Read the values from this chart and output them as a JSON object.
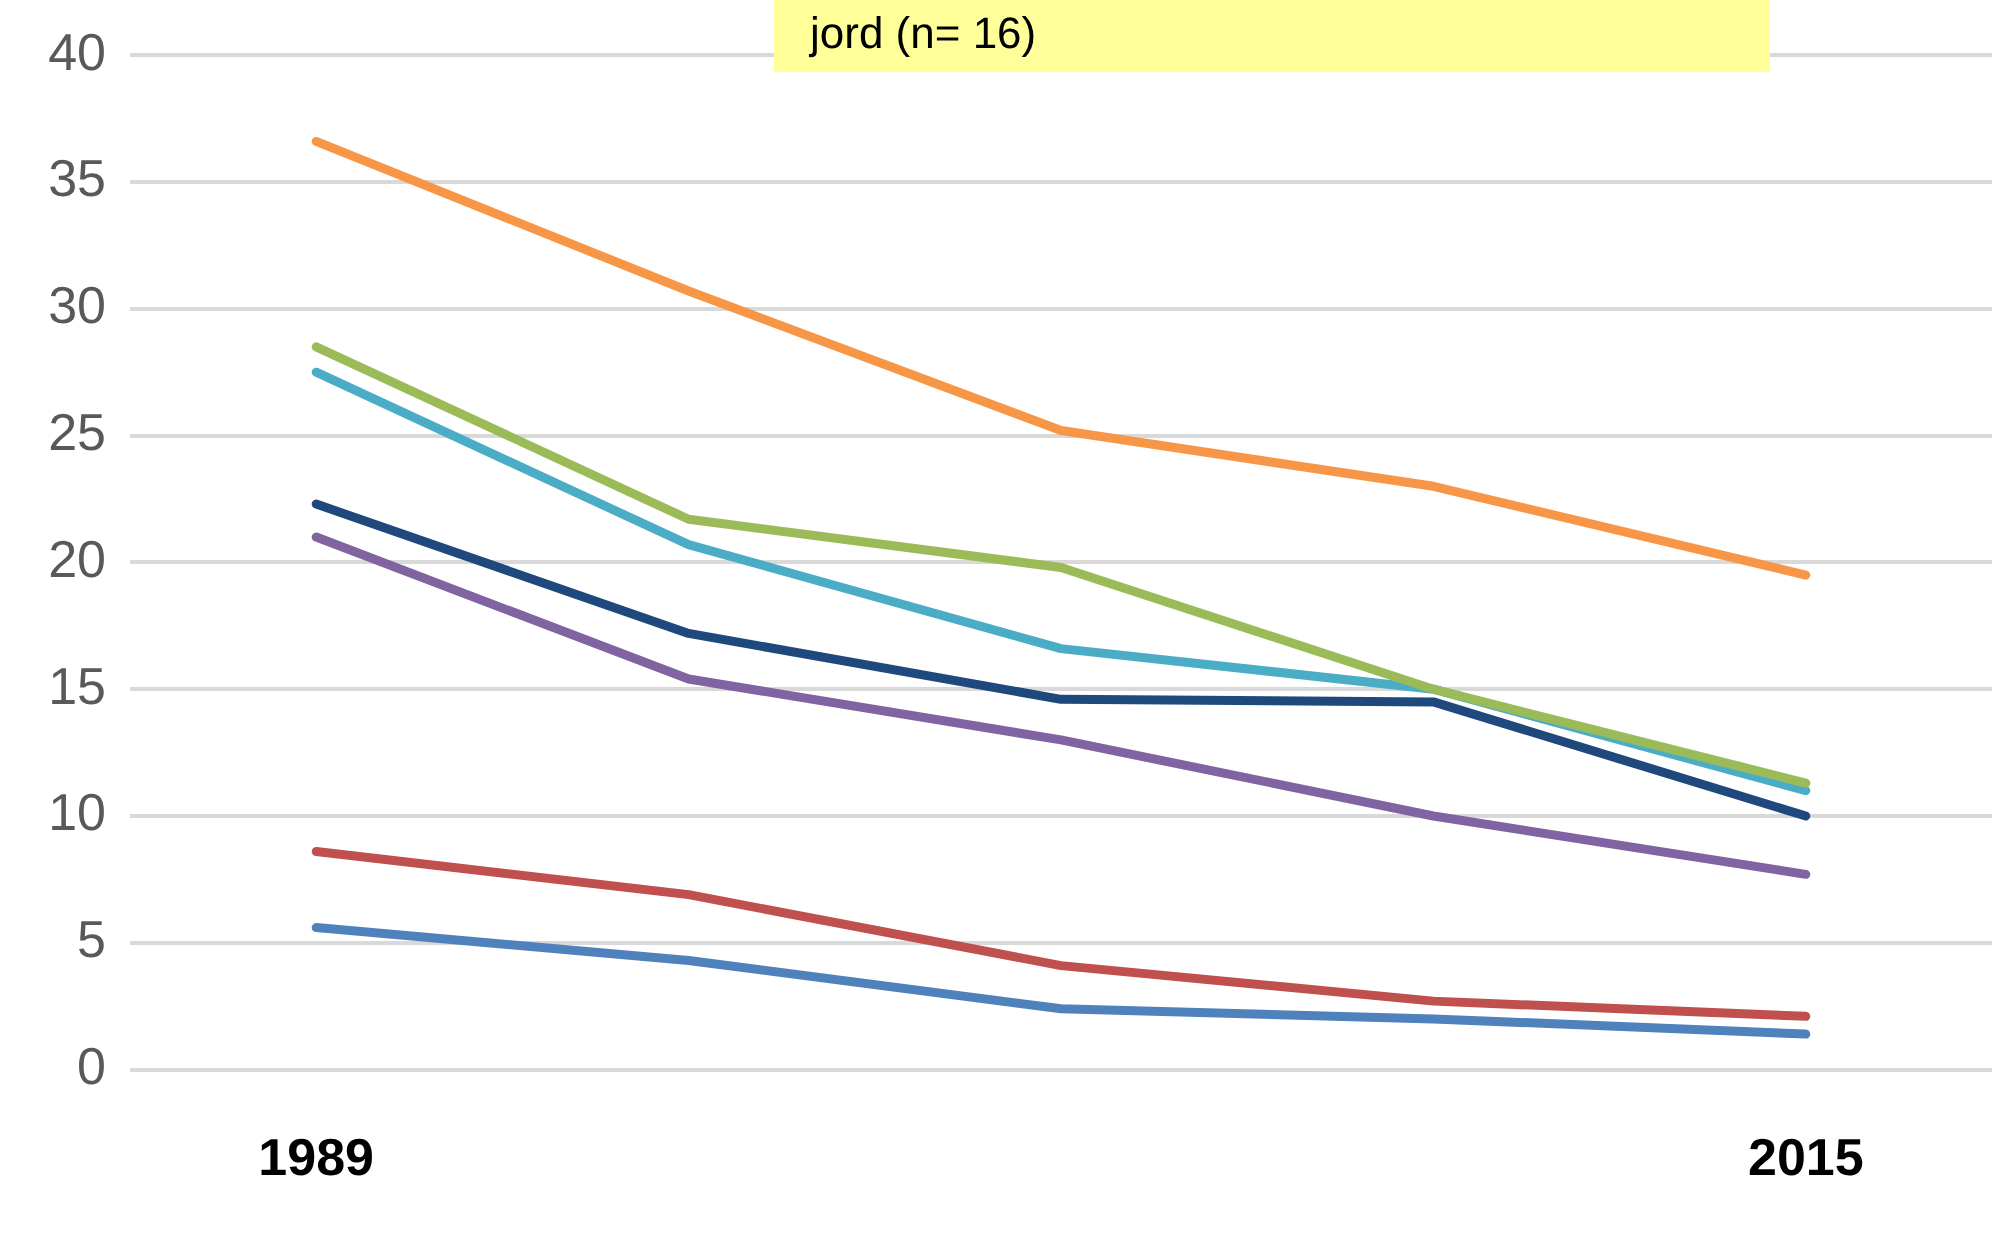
{
  "chart_data": {
    "type": "line",
    "annotations": [
      "jord (n= 16)"
    ],
    "categories": [
      "1989",
      null,
      null,
      null,
      "2015"
    ],
    "ylim": [
      0,
      40
    ],
    "yticks": [
      0,
      5,
      10,
      15,
      20,
      25,
      30,
      35,
      40
    ],
    "grid": "y",
    "legend": false,
    "marker": "none",
    "line_style": "solid",
    "series": [
      {
        "color": "#f79646",
        "values": [
          36.6,
          30.7,
          25.2,
          23.0,
          19.5
        ]
      },
      {
        "color": "#9bbb59",
        "values": [
          28.5,
          21.7,
          19.8,
          15.0,
          11.3
        ]
      },
      {
        "color": "#4bacc6",
        "values": [
          27.5,
          20.7,
          16.6,
          15.0,
          11.0
        ]
      },
      {
        "color": "#1f497d",
        "values": [
          22.3,
          17.2,
          14.6,
          14.5,
          10.0
        ]
      },
      {
        "color": "#8064a2",
        "values": [
          21.0,
          15.4,
          13.0,
          10.0,
          7.7
        ]
      },
      {
        "color": "#c0504d",
        "values": [
          8.6,
          6.9,
          4.1,
          2.7,
          2.1
        ]
      },
      {
        "color": "#4f81bd",
        "values": [
          5.6,
          4.3,
          2.4,
          2.0,
          1.4
        ]
      }
    ]
  }
}
